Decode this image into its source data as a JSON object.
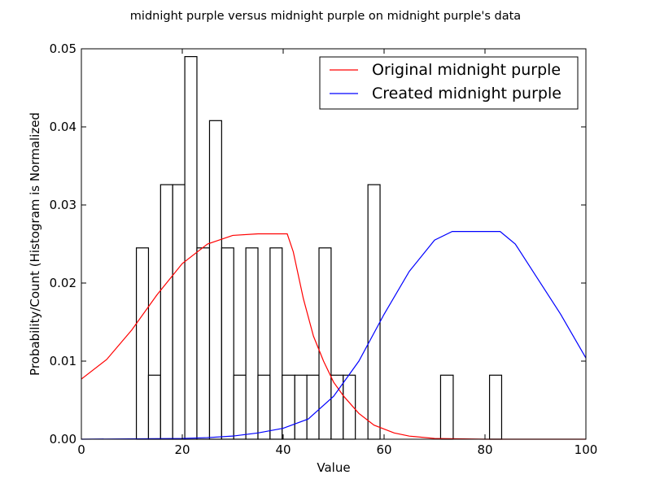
{
  "chart_data": {
    "type": "bar",
    "title": "midnight purple versus midnight purple on midnight purple's data",
    "xlabel": "Value",
    "ylabel": "Probability/Count (Histogram is Normalized",
    "xlim": [
      0,
      100
    ],
    "ylim": [
      0,
      0.05
    ],
    "x_ticks": [
      "0",
      "20",
      "40",
      "60",
      "80",
      "100"
    ],
    "y_ticks": [
      "0.00",
      "0.01",
      "0.02",
      "0.03",
      "0.04",
      "0.05"
    ],
    "grid": false,
    "legend_position": "top-right",
    "histogram": {
      "bins": [
        {
          "x0": 10.9,
          "x1": 13.3,
          "value": 0.0245
        },
        {
          "x0": 13.3,
          "x1": 15.7,
          "value": 0.0082
        },
        {
          "x0": 15.7,
          "x1": 18.1,
          "value": 0.0326
        },
        {
          "x0": 18.1,
          "x1": 20.5,
          "value": 0.0326
        },
        {
          "x0": 20.5,
          "x1": 22.9,
          "value": 0.049
        },
        {
          "x0": 22.9,
          "x1": 25.4,
          "value": 0.0245
        },
        {
          "x0": 25.4,
          "x1": 27.8,
          "value": 0.0408
        },
        {
          "x0": 27.8,
          "x1": 30.2,
          "value": 0.0245
        },
        {
          "x0": 30.2,
          "x1": 32.6,
          "value": 0.0082
        },
        {
          "x0": 32.6,
          "x1": 35.0,
          "value": 0.0245
        },
        {
          "x0": 35.0,
          "x1": 37.4,
          "value": 0.0082
        },
        {
          "x0": 37.4,
          "x1": 39.8,
          "value": 0.0245
        },
        {
          "x0": 39.8,
          "x1": 42.3,
          "value": 0.0082
        },
        {
          "x0": 42.3,
          "x1": 44.7,
          "value": 0.0082
        },
        {
          "x0": 44.7,
          "x1": 47.1,
          "value": 0.0082
        },
        {
          "x0": 47.1,
          "x1": 49.5,
          "value": 0.0245
        },
        {
          "x0": 49.5,
          "x1": 51.9,
          "value": 0.0082
        },
        {
          "x0": 51.9,
          "x1": 54.3,
          "value": 0.0082
        },
        {
          "x0": 56.8,
          "x1": 59.2,
          "value": 0.0326
        },
        {
          "x0": 71.2,
          "x1": 73.7,
          "value": 0.0082
        },
        {
          "x0": 80.9,
          "x1": 83.3,
          "value": 0.0082
        }
      ]
    },
    "series": [
      {
        "name": "Original midnight purple",
        "color": "#ff0000",
        "points": [
          [
            0,
            0.0077
          ],
          [
            5,
            0.0102
          ],
          [
            10,
            0.014
          ],
          [
            15,
            0.0185
          ],
          [
            20,
            0.0225
          ],
          [
            25,
            0.025
          ],
          [
            30,
            0.0261
          ],
          [
            35,
            0.0263
          ],
          [
            40.8,
            0.0263
          ],
          [
            42,
            0.024
          ],
          [
            44,
            0.018
          ],
          [
            46,
            0.0132
          ],
          [
            48,
            0.01
          ],
          [
            50,
            0.0073
          ],
          [
            52,
            0.0055
          ],
          [
            55,
            0.0033
          ],
          [
            58,
            0.0018
          ],
          [
            62,
            0.0008
          ],
          [
            65,
            0.0004
          ],
          [
            70,
            0.0001
          ],
          [
            80,
            0.0
          ],
          [
            100,
            0.0
          ]
        ]
      },
      {
        "name": "Created midnight purple",
        "color": "#0000ff",
        "points": [
          [
            0,
            0.0
          ],
          [
            20,
            0.0001
          ],
          [
            25,
            0.0002
          ],
          [
            30,
            0.0004
          ],
          [
            35,
            0.0008
          ],
          [
            40,
            0.0014
          ],
          [
            45,
            0.0026
          ],
          [
            50,
            0.0055
          ],
          [
            55,
            0.01
          ],
          [
            60,
            0.016
          ],
          [
            65,
            0.0215
          ],
          [
            70,
            0.0255
          ],
          [
            73.5,
            0.0266
          ],
          [
            83,
            0.0266
          ],
          [
            86,
            0.025
          ],
          [
            90,
            0.021
          ],
          [
            95,
            0.016
          ],
          [
            100,
            0.0104
          ]
        ]
      }
    ]
  }
}
